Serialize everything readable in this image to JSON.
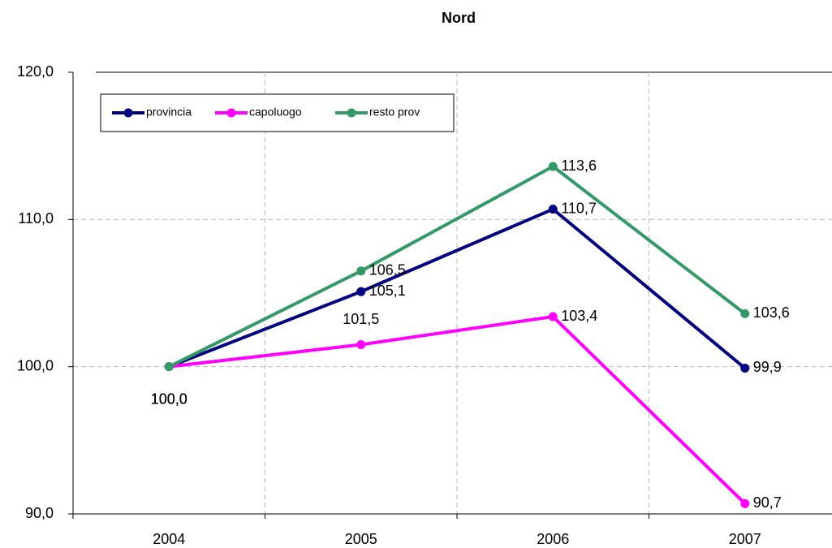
{
  "chart_data": {
    "type": "line",
    "title": "Nord",
    "categories": [
      "2004",
      "2005",
      "2006",
      "2007"
    ],
    "series": [
      {
        "name": "provincia",
        "color": "#000080",
        "values": [
          100.0,
          105.1,
          110.7,
          99.9
        ],
        "value_labels": [
          "100,0",
          "105,1",
          "110,7",
          "99,9"
        ]
      },
      {
        "name": "capoluogo",
        "color": "#ff00ff",
        "values": [
          100.0,
          101.5,
          103.4,
          90.7
        ],
        "value_labels": [
          "100,0",
          "101,5",
          "103,4",
          "90,7"
        ]
      },
      {
        "name": "resto prov",
        "color": "#339966",
        "values": [
          100.0,
          106.5,
          113.6,
          103.6
        ],
        "value_labels": [
          "100,0",
          "106,5",
          "113,6",
          "103,6"
        ]
      }
    ],
    "ylim": [
      90,
      120
    ],
    "yticks": [
      {
        "value": 90,
        "label": "90,0"
      },
      {
        "value": 100,
        "label": "100,0"
      },
      {
        "value": 110,
        "label": "110,0"
      },
      {
        "value": 120,
        "label": "120,0"
      }
    ],
    "grid": true
  }
}
